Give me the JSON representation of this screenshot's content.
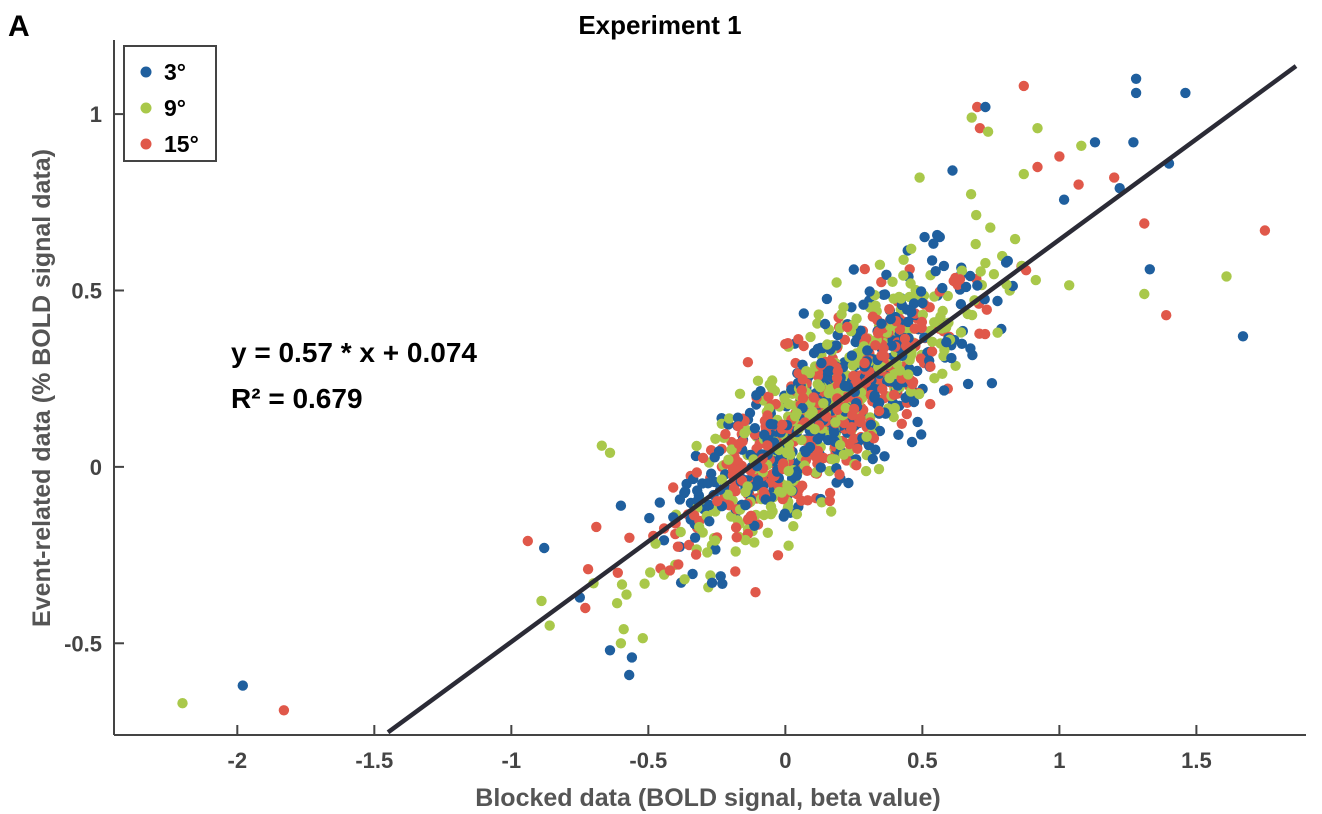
{
  "chart_data": {
    "type": "scatter",
    "panel_label": "A",
    "title": "Experiment 1",
    "xlabel": "Blocked data (BOLD signal, beta value)",
    "ylabel": "Event-related data (% BOLD signal data)",
    "xlim": [
      -2.45,
      1.9
    ],
    "ylim": [
      -0.76,
      1.21
    ],
    "xticks": [
      -2,
      -1.5,
      -1,
      -0.5,
      0,
      0.5,
      1,
      1.5
    ],
    "xtick_labels": [
      "-2",
      "-1.5",
      "-1",
      "-0.5",
      "0",
      "0.5",
      "1",
      "1.5"
    ],
    "yticks": [
      -0.5,
      0,
      0.5,
      1
    ],
    "ytick_labels": [
      "-0.5",
      "0",
      "0.5",
      "1"
    ],
    "grid": false,
    "legend_position": "top-left",
    "fit": {
      "slope": 0.57,
      "intercept": 0.074,
      "x_range": [
        -1.45,
        1.9
      ],
      "color": "#2b2b36"
    },
    "annotation_lines": [
      "y = 0.57 * x + 0.074",
      "R² = 0.679"
    ],
    "cloud_correlation": 0.82,
    "series": [
      {
        "name": "3°",
        "color": "#1f5f9e",
        "n_cloud": 420,
        "seed": 11,
        "cloud_mean": [
          0.15,
          0.16
        ],
        "cloud_sd": [
          0.26,
          0.19
        ],
        "outliers": [
          [
            -1.98,
            -0.62
          ],
          [
            -0.88,
            -0.23
          ],
          [
            -0.57,
            -0.59
          ],
          [
            -0.56,
            -0.54
          ],
          [
            1.28,
            1.1
          ],
          [
            1.28,
            1.06
          ],
          [
            1.46,
            1.06
          ],
          [
            1.27,
            0.92
          ],
          [
            1.13,
            0.92
          ],
          [
            1.4,
            0.86
          ],
          [
            1.22,
            0.79
          ],
          [
            1.33,
            0.56
          ],
          [
            1.67,
            0.37
          ],
          [
            0.61,
            0.84
          ],
          [
            0.73,
            1.02
          ],
          [
            -0.64,
            -0.52
          ],
          [
            -0.75,
            -0.37
          ],
          [
            -0.6,
            -0.11
          ]
        ]
      },
      {
        "name": "9°",
        "color": "#a9c84a",
        "n_cloud": 420,
        "seed": 23,
        "cloud_mean": [
          0.15,
          0.16
        ],
        "cloud_sd": [
          0.26,
          0.19
        ],
        "outliers": [
          [
            -2.2,
            -0.67
          ],
          [
            -0.89,
            -0.38
          ],
          [
            -0.86,
            -0.45
          ],
          [
            -0.67,
            0.06
          ],
          [
            -0.64,
            0.04
          ],
          [
            -0.59,
            -0.46
          ],
          [
            -0.6,
            -0.5
          ],
          [
            0.68,
            0.99
          ],
          [
            0.74,
            0.95
          ],
          [
            0.92,
            0.96
          ],
          [
            1.08,
            0.91
          ],
          [
            1.61,
            0.54
          ],
          [
            1.31,
            0.49
          ],
          [
            0.87,
            0.83
          ],
          [
            0.49,
            0.82
          ],
          [
            -0.7,
            -0.33
          ]
        ]
      },
      {
        "name": "15°",
        "color": "#e0584a",
        "n_cloud": 420,
        "seed": 37,
        "cloud_mean": [
          0.15,
          0.16
        ],
        "cloud_sd": [
          0.26,
          0.19
        ],
        "outliers": [
          [
            -1.83,
            -0.69
          ],
          [
            -0.94,
            -0.21
          ],
          [
            -0.73,
            -0.4
          ],
          [
            -0.72,
            -0.29
          ],
          [
            -0.69,
            -0.17
          ],
          [
            0.87,
            1.08
          ],
          [
            0.7,
            1.02
          ],
          [
            0.71,
            0.96
          ],
          [
            1.0,
            0.88
          ],
          [
            1.07,
            0.8
          ],
          [
            1.75,
            0.67
          ],
          [
            1.31,
            0.69
          ],
          [
            1.39,
            0.43
          ],
          [
            0.92,
            0.85
          ],
          [
            1.2,
            0.82
          ]
        ]
      }
    ]
  }
}
